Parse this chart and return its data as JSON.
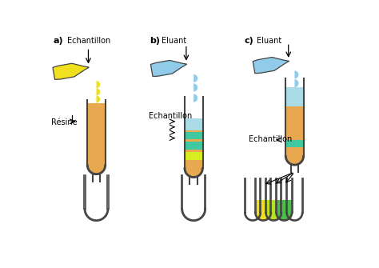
{
  "bg_color": "#ffffff",
  "panel_labels": [
    "a)",
    "b)",
    "c)"
  ],
  "colors": {
    "resin": "#E8A850",
    "yellow_sample": "#F0E020",
    "blue_eluant": "#90CCEA",
    "blue_layer": "#AADCE8",
    "teal_band": "#40C8A0",
    "yellow_band": "#D8ED20",
    "tube_outline": "#444444",
    "collect_yellow": "#F0E020",
    "collect_ygreen": "#B8E020",
    "collect_green": "#48C048"
  }
}
